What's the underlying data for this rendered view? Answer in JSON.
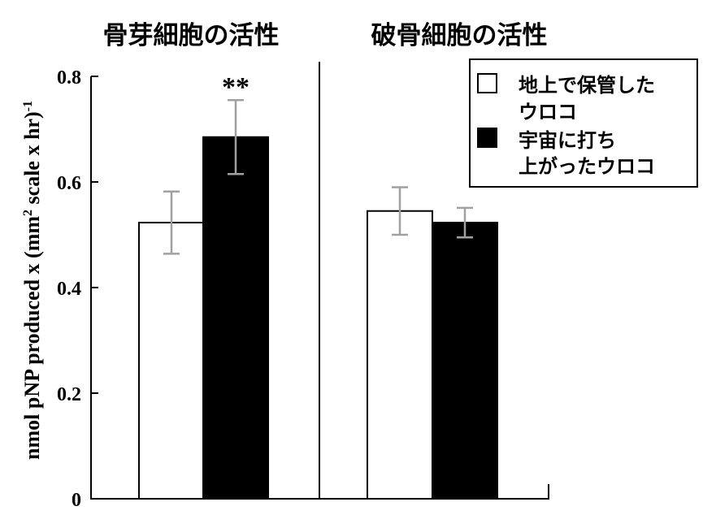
{
  "chart_data": {
    "type": "bar",
    "ylabel": "nmol pNP produced x (mm",
    "ylabel_sup1": "2",
    "ylabel_mid": " scale x hr)",
    "ylabel_sup2": "-1",
    "ylim": [
      0,
      0.8
    ],
    "yticks": [
      "0",
      "0.2",
      "0.4",
      "0.6",
      "0.8"
    ],
    "ytick_values": [
      0,
      0.2,
      0.4,
      0.6,
      0.8
    ],
    "groups": [
      {
        "title": "骨芽細胞の活性"
      },
      {
        "title": "破骨細胞の活性"
      }
    ],
    "series": [
      {
        "name": "地上で保管したウロコ",
        "legend_lines": [
          "地上で保管した",
          "ウロコ"
        ],
        "color": "#ffffff",
        "values": [
          0.523,
          0.545
        ],
        "errors": [
          0.059,
          0.045
        ]
      },
      {
        "name": "宇宙に打ち上がったウロコ",
        "legend_lines": [
          "宇宙に打ち",
          "上がったウロコ"
        ],
        "color": "#000000",
        "values": [
          0.685,
          0.523
        ],
        "errors": [
          0.07,
          0.028
        ]
      }
    ],
    "annotations": [
      {
        "text": "**",
        "group": 0,
        "series": 1
      }
    ],
    "error_bar_color": "#a0a0a0",
    "legend_position": "top-right",
    "grid": false
  }
}
